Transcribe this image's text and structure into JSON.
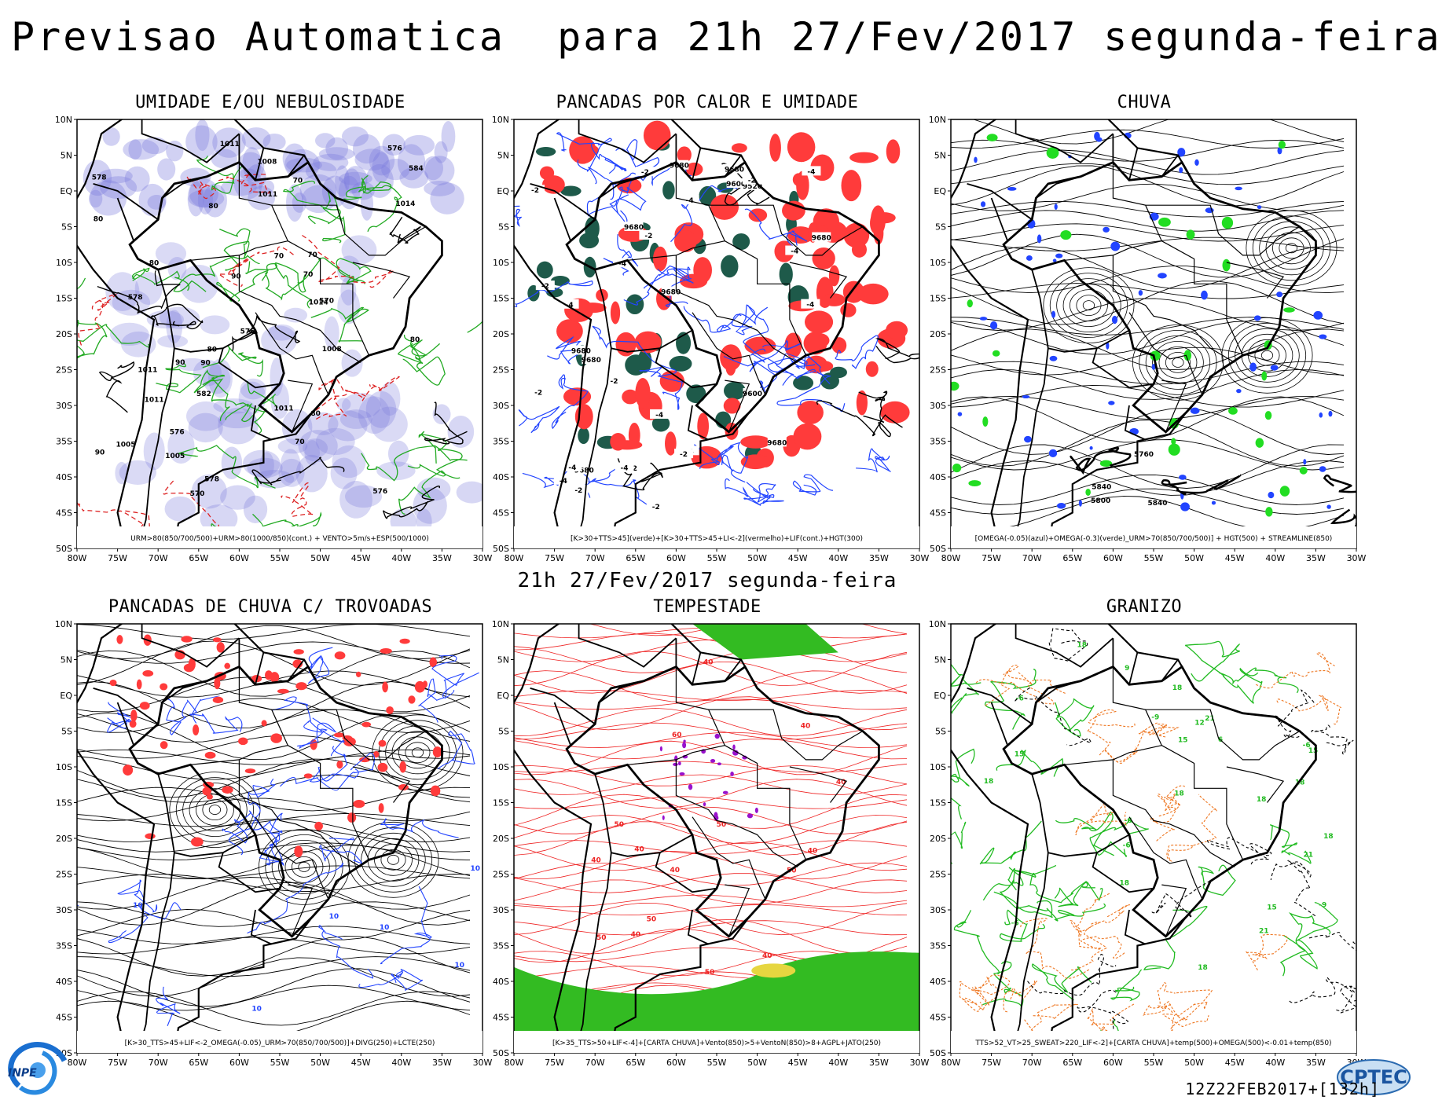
{
  "header": {
    "title": "Previsao Automatica  para 21h 27/Fev/2017 segunda-feira"
  },
  "middle_title": "21h 27/Fev/2017 segunda-feira",
  "axes": {
    "lat_labels": [
      "10N",
      "5N",
      "EQ",
      "5S",
      "10S",
      "15S",
      "20S",
      "25S",
      "30S",
      "35S",
      "40S",
      "45S",
      "50S"
    ],
    "lon_labels": [
      "80W",
      "75W",
      "70W",
      "65W",
      "60W",
      "55W",
      "50W",
      "45W",
      "40W",
      "35W",
      "30W"
    ]
  },
  "panels": [
    {
      "id": "umidade",
      "title": "UMIDADE E/OU NEBULOSIDADE",
      "legend": "URM>80(850/700/500)+URM>80(1000/850)(cont.) + VENTO>5m/s+ESP(500/1000)",
      "labels": [
        "1011",
        "576",
        "576",
        "1011",
        "1008",
        "1011",
        "1011",
        "1011",
        "1005",
        "1014",
        "1014",
        "1008",
        "1005",
        "584",
        "570",
        "570",
        "578",
        "582",
        "576",
        "578",
        "578",
        "576",
        "80",
        "90",
        "80",
        "80",
        "90",
        "80",
        "80",
        "90",
        "70",
        "70",
        "70",
        "70",
        "70",
        "90",
        "80"
      ],
      "colors": {
        "humidity": "#7b7bdc",
        "contour_green": "#22aa22",
        "contour_red": "#dd2222"
      }
    },
    {
      "id": "pancadas_calor",
      "title": "PANCADAS POR CALOR E UMIDADE",
      "legend": "[K>30+TTS>45](verde)+[K>30+TTS>45+LI<-2](vermelho)+LIF(cont.)+HGT(300)",
      "labels": [
        "9680",
        "9680",
        "9680",
        "9680",
        "9680",
        "9680",
        "9680",
        "9680",
        "9680",
        "9600",
        "9600",
        "9520",
        "-2",
        "-4",
        "-4",
        "-2",
        "-4",
        "-2",
        "-4",
        "-4",
        "-4",
        "-2",
        "-4",
        "-2",
        "-4",
        "-4",
        "-2",
        "-2",
        "-4",
        "-2",
        "-2",
        "-2",
        "-2",
        "-4"
      ],
      "colors": {
        "red": "#ff3b3b",
        "green": "#1e5a4a",
        "blue": "#2244ff"
      }
    },
    {
      "id": "chuva",
      "title": "CHUVA",
      "legend": "[OMEGA(-0.05)(azul)+OMEGA(-0.3)(verde)_URM>70(850/700/500)] + HGT(500) + STREAMLINE(850)",
      "labels": [
        "5840",
        "5840",
        "5800",
        "5760"
      ],
      "colors": {
        "blue": "#2244ff",
        "green": "#22dd22"
      }
    },
    {
      "id": "pancadas_trovoadas",
      "title": "PANCADAS DE CHUVA C/ TROVOADAS",
      "legend": "[K>30_TTS>45+LIF<-2_OMEGA(-0.05)_URM>70(850/700/500)]+DIVG(250)+LCTE(250)",
      "labels": [
        "10",
        "10",
        "10",
        "10",
        "10",
        "10"
      ],
      "colors": {
        "red": "#ff3b3b",
        "blue": "#2244ff"
      }
    },
    {
      "id": "tempestade",
      "title": "TEMPESTADE",
      "legend": "[K>35_TTS>50+LIF<-4]+[CARTA CHUVA]+Vento(850)>5+VentoN(850)>8+AGPL+JATO(250)",
      "labels": [
        "50",
        "50",
        "50",
        "50",
        "50",
        "50",
        "40",
        "40",
        "40",
        "40",
        "40",
        "40",
        "40",
        "60",
        "40",
        "40"
      ],
      "colors": {
        "red": "#ee2222",
        "green": "#33bb22",
        "purple": "#9911cc",
        "yellow": "#e6d640"
      }
    },
    {
      "id": "granizo",
      "title": "GRANIZO",
      "legend": "TTS>52_VT>25_SWEAT>220_LIF<-2]+[CARTA CHUVA]+temp(500)+OMEGA(500)<-0.01+temp(850)",
      "labels": [
        "18",
        "15",
        "18",
        "21",
        "18",
        "18",
        "15",
        "18",
        "21",
        "15",
        "15",
        "18",
        "18",
        "21",
        "-6",
        "-6",
        "-6",
        "-9",
        "-9",
        "12",
        "-6",
        "-6",
        "9",
        "6",
        "18",
        "18"
      ],
      "colors": {
        "green": "#22bb22",
        "orange": "#ee7722",
        "black": "#000000"
      }
    }
  ],
  "footer": {
    "run": "12Z22FEB2017+[132h]"
  },
  "logos": {
    "inpe": "INPE",
    "cptec": "CPTEC"
  }
}
